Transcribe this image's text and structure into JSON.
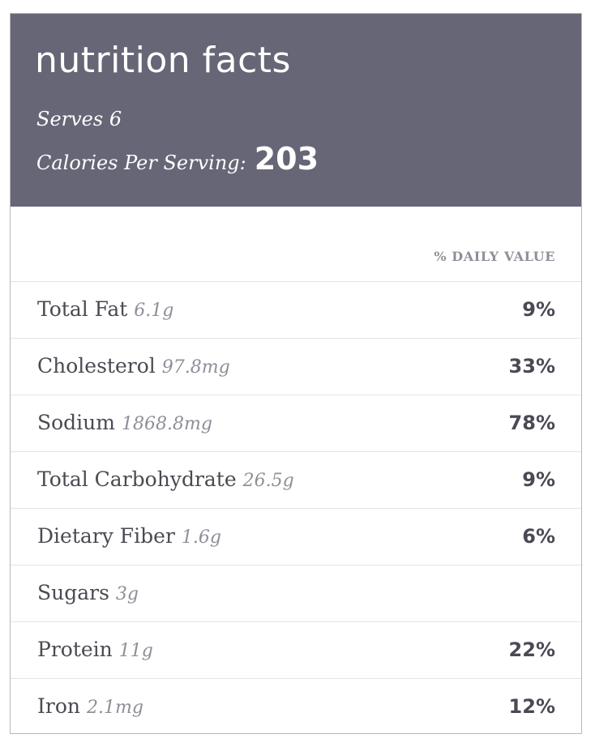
{
  "header": {
    "title": "nutrition facts",
    "serves": "Serves 6",
    "calories_label": "Calories Per Serving:",
    "calories_value": "203"
  },
  "daily_value_label": "% DAILY VALUE",
  "nutrients": [
    {
      "name": "Total Fat",
      "amount": "6.1g",
      "percent": "9%"
    },
    {
      "name": "Cholesterol",
      "amount": "97.8mg",
      "percent": "33%"
    },
    {
      "name": "Sodium",
      "amount": "1868.8mg",
      "percent": "78%"
    },
    {
      "name": "Total Carbohydrate",
      "amount": "26.5g",
      "percent": "9%"
    },
    {
      "name": "Dietary Fiber",
      "amount": "1.6g",
      "percent": "6%"
    },
    {
      "name": "Sugars",
      "amount": "3g",
      "percent": ""
    },
    {
      "name": "Protein",
      "amount": "11g",
      "percent": "22%"
    },
    {
      "name": "Iron",
      "amount": "2.1mg",
      "percent": "12%"
    }
  ],
  "colors": {
    "header_bg": "#676677",
    "text_dark": "#4a4a52",
    "text_muted": "#8f8f99",
    "divider": "#e4e4e8"
  }
}
